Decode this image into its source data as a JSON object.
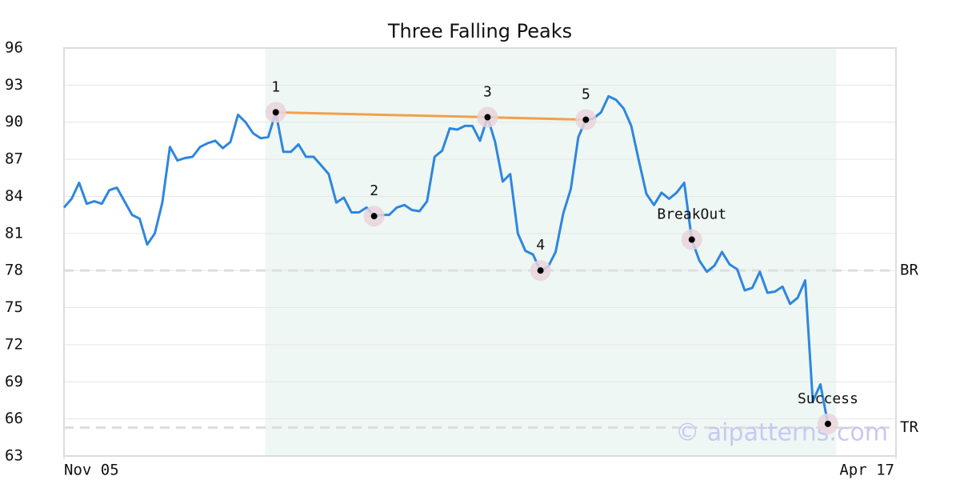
{
  "chart_data": {
    "type": "line",
    "title": "Three Falling Peaks",
    "color": "#2e86de",
    "x": [
      0,
      1,
      2,
      3,
      4,
      5,
      6,
      7,
      8,
      9,
      10,
      11,
      12,
      13,
      14,
      15,
      16,
      17,
      18,
      19,
      20,
      21,
      22,
      23,
      24,
      25,
      26,
      27,
      28,
      29,
      30,
      31,
      32,
      33,
      34,
      35,
      36,
      37,
      38,
      39,
      40,
      41,
      42,
      43,
      44,
      45,
      46,
      47,
      48,
      49,
      50,
      51,
      52,
      53,
      54,
      55,
      56,
      57,
      58,
      59,
      60,
      61,
      62,
      63,
      64,
      65,
      66,
      67,
      68,
      69,
      70,
      71,
      72,
      73,
      74,
      75,
      76,
      77,
      78,
      79,
      80,
      81,
      82,
      83,
      84,
      85,
      86,
      87,
      88,
      89,
      90,
      91,
      92,
      93,
      94,
      95,
      96,
      97,
      98,
      99,
      100,
      101
    ],
    "values": [
      83.1,
      83.8,
      85.1,
      83.4,
      83.6,
      83.4,
      84.5,
      84.7,
      83.6,
      82.5,
      82.2,
      80.1,
      81.0,
      83.5,
      88.0,
      86.9,
      87.1,
      87.2,
      88.0,
      88.3,
      88.5,
      87.9,
      88.4,
      90.6,
      90.0,
      89.1,
      88.7,
      88.8,
      90.8,
      87.6,
      87.6,
      88.2,
      87.2,
      87.2,
      86.5,
      85.8,
      83.5,
      83.9,
      82.7,
      82.7,
      83.1,
      82.4,
      82.5,
      82.5,
      83.1,
      83.3,
      82.9,
      82.8,
      83.6,
      87.2,
      87.7,
      89.5,
      89.4,
      89.7,
      89.7,
      88.5,
      90.4,
      88.4,
      85.2,
      85.8,
      81.0,
      79.6,
      79.3,
      78.0,
      78.3,
      79.5,
      82.6,
      84.6,
      88.8,
      90.2,
      90.3,
      90.8,
      92.1,
      91.8,
      91.1,
      89.7,
      86.9,
      84.2,
      83.3,
      84.3,
      83.8,
      84.3,
      85.1,
      80.5,
      78.8,
      77.9,
      78.4,
      79.5,
      78.5,
      78.1,
      76.4,
      76.6,
      77.9,
      76.2,
      76.3,
      76.7,
      75.3,
      75.8,
      77.2,
      67.4,
      68.8,
      65.6
    ],
    "xlim": [
      0,
      110
    ],
    "xticks": [
      {
        "value": 0,
        "label": "Nov 05"
      },
      {
        "value": 110,
        "label": "Apr 17"
      }
    ],
    "ylim": [
      63,
      96
    ],
    "yticks": [
      63,
      66,
      69,
      72,
      75,
      78,
      81,
      84,
      87,
      90,
      93,
      96
    ],
    "grid": true,
    "highlight_x": [
      26.6,
      102.1
    ],
    "highlight_color": "#eef7f3",
    "reference_lines": [
      {
        "label": "BR",
        "value": 78
      },
      {
        "label": "TR",
        "value": 65.3
      }
    ],
    "trend_line": {
      "color": "#f4a04a",
      "x": [
        28,
        56,
        69
      ],
      "y": [
        90.8,
        90.4,
        90.2
      ]
    },
    "annotations": [
      {
        "label": "1",
        "x": 28,
        "y": 90.8
      },
      {
        "label": "2",
        "x": 41,
        "y": 82.4
      },
      {
        "label": "3",
        "x": 56,
        "y": 90.4
      },
      {
        "label": "4",
        "x": 63,
        "y": 78.0
      },
      {
        "label": "5",
        "x": 69,
        "y": 90.2
      },
      {
        "label": "BreakOut",
        "x": 83,
        "y": 80.5
      },
      {
        "label": "Success",
        "x": 101,
        "y": 65.6
      }
    ],
    "watermark": "© aipatterns.com"
  }
}
